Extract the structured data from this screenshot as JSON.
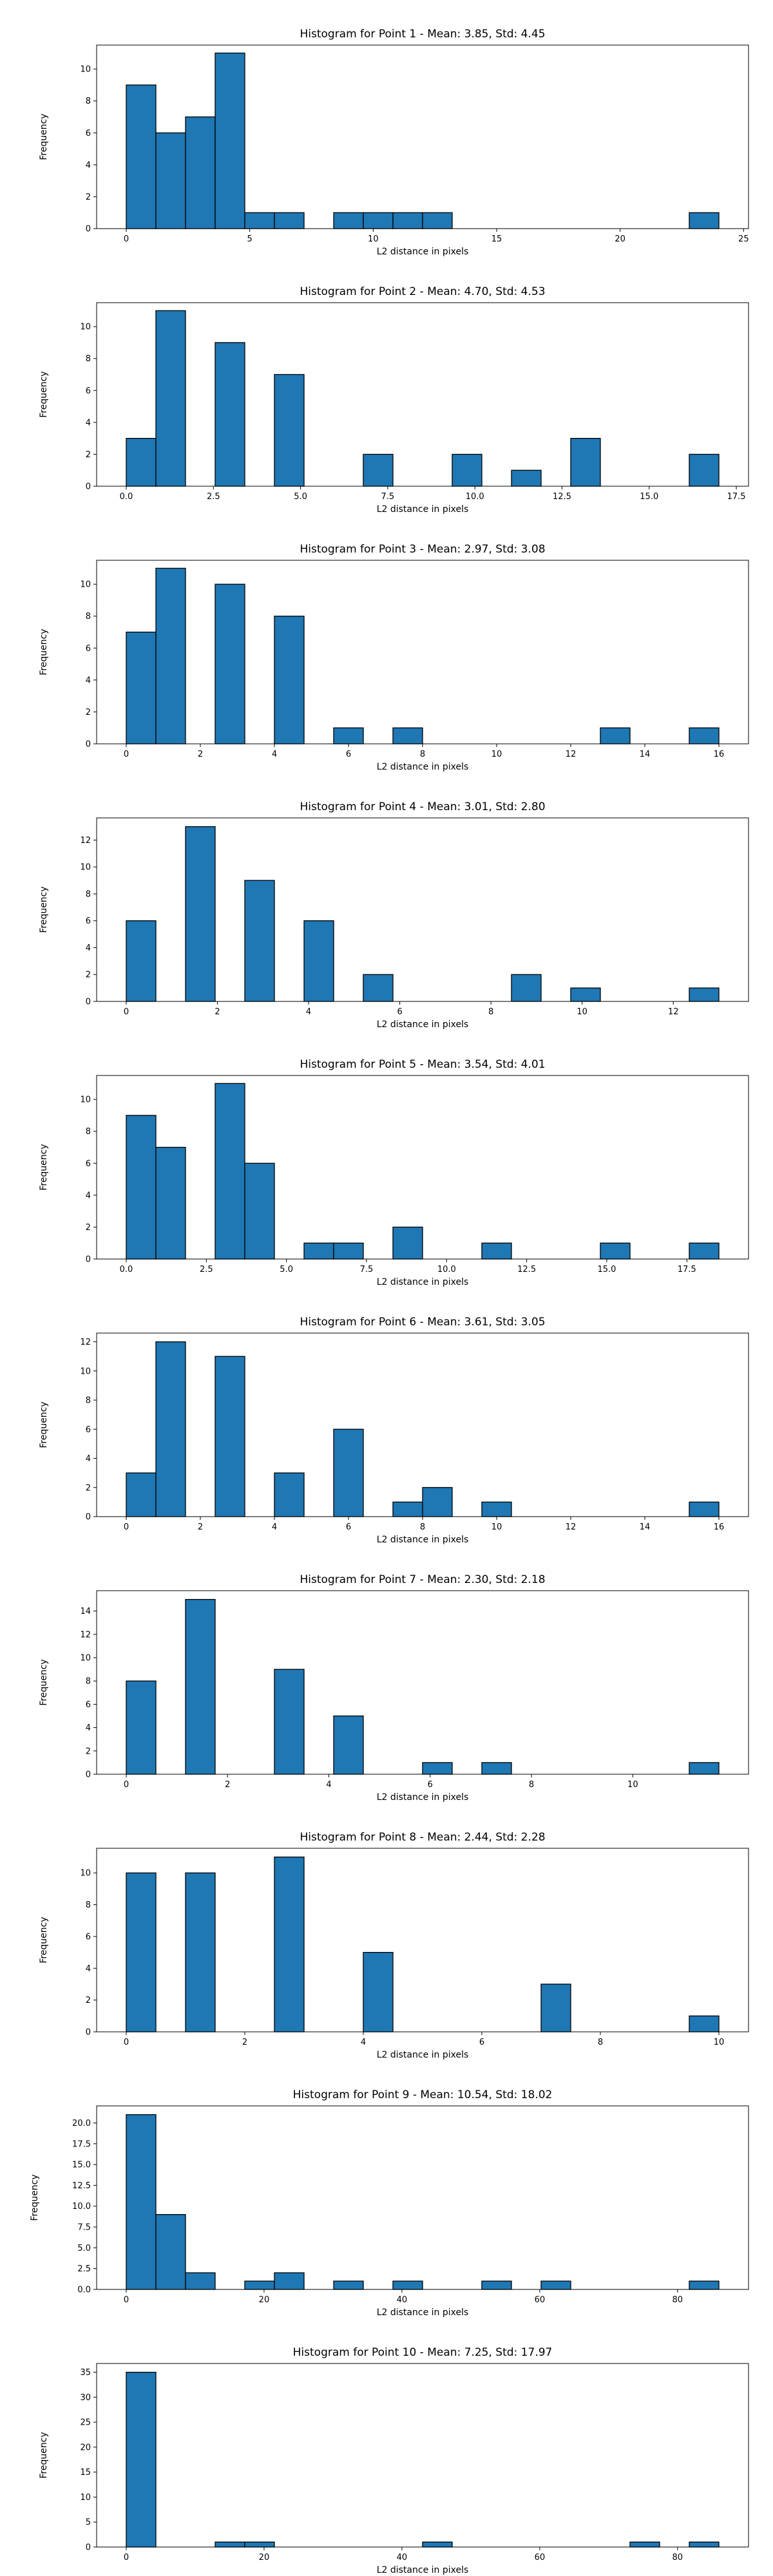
{
  "style": {
    "bar_color": "#1f77b4",
    "edge_color": "#000000",
    "background": "#ffffff"
  },
  "chart_data": [
    {
      "type": "bar",
      "title": "Histogram for Point 1 - Mean: 3.85, Std: 4.45",
      "xlabel": "L2 distance in pixels",
      "ylabel": "Frequency",
      "xlim": [
        -1.2,
        25.2
      ],
      "ylim": [
        0,
        11.5
      ],
      "xticks": [
        0,
        5,
        10,
        15,
        20,
        25
      ],
      "yticks": [
        0,
        2,
        4,
        6,
        8,
        10
      ],
      "bins": [
        {
          "x0": 0,
          "x1": 1.2,
          "count": 9
        },
        {
          "x0": 1.2,
          "x1": 2.4,
          "count": 6
        },
        {
          "x0": 2.4,
          "x1": 3.6,
          "count": 7
        },
        {
          "x0": 3.6,
          "x1": 4.8,
          "count": 11
        },
        {
          "x0": 4.8,
          "x1": 6.0,
          "count": 1
        },
        {
          "x0": 6.0,
          "x1": 7.2,
          "count": 1
        },
        {
          "x0": 8.4,
          "x1": 9.6,
          "count": 1
        },
        {
          "x0": 9.6,
          "x1": 10.8,
          "count": 1
        },
        {
          "x0": 10.8,
          "x1": 12.0,
          "count": 1
        },
        {
          "x0": 12.0,
          "x1": 13.2,
          "count": 1
        },
        {
          "x0": 22.8,
          "x1": 24.0,
          "count": 1
        }
      ]
    },
    {
      "type": "bar",
      "title": "Histogram for Point 2 - Mean: 4.70, Std: 4.53",
      "xlabel": "L2 distance in pixels",
      "ylabel": "Frequency",
      "xlim": [
        -0.85,
        17.85
      ],
      "ylim": [
        0,
        11.5
      ],
      "xticks": [
        0.0,
        2.5,
        5.0,
        7.5,
        10.0,
        12.5,
        15.0,
        17.5
      ],
      "xtick_labels": [
        "0.0",
        "2.5",
        "5.0",
        "7.5",
        "10.0",
        "12.5",
        "15.0",
        "17.5"
      ],
      "yticks": [
        0,
        2,
        4,
        6,
        8,
        10
      ],
      "bins": [
        {
          "x0": 0,
          "x1": 0.85,
          "count": 3
        },
        {
          "x0": 0.85,
          "x1": 1.7,
          "count": 11
        },
        {
          "x0": 2.55,
          "x1": 3.4,
          "count": 9
        },
        {
          "x0": 4.25,
          "x1": 5.1,
          "count": 7
        },
        {
          "x0": 6.8,
          "x1": 7.65,
          "count": 2
        },
        {
          "x0": 9.35,
          "x1": 10.2,
          "count": 2
        },
        {
          "x0": 11.05,
          "x1": 11.9,
          "count": 1
        },
        {
          "x0": 12.75,
          "x1": 13.6,
          "count": 3
        },
        {
          "x0": 16.15,
          "x1": 17.0,
          "count": 2
        }
      ]
    },
    {
      "type": "bar",
      "title": "Histogram for Point 3 - Mean: 2.97, Std: 3.08",
      "xlabel": "L2 distance in pixels",
      "ylabel": "Frequency",
      "xlim": [
        -0.8,
        16.8
      ],
      "ylim": [
        0,
        11.5
      ],
      "xticks": [
        0,
        2,
        4,
        6,
        8,
        10,
        12,
        14,
        16
      ],
      "yticks": [
        0,
        2,
        4,
        6,
        8,
        10
      ],
      "bins": [
        {
          "x0": 0,
          "x1": 0.8,
          "count": 7
        },
        {
          "x0": 0.8,
          "x1": 1.6,
          "count": 11
        },
        {
          "x0": 2.4,
          "x1": 3.2,
          "count": 10
        },
        {
          "x0": 4.0,
          "x1": 4.8,
          "count": 8
        },
        {
          "x0": 5.6,
          "x1": 6.4,
          "count": 1
        },
        {
          "x0": 7.2,
          "x1": 8.0,
          "count": 1
        },
        {
          "x0": 12.8,
          "x1": 13.6,
          "count": 1
        },
        {
          "x0": 15.2,
          "x1": 16.0,
          "count": 1
        }
      ]
    },
    {
      "type": "bar",
      "title": "Histogram for Point 4 - Mean: 3.01, Std: 2.80",
      "xlabel": "L2 distance in pixels",
      "ylabel": "Frequency",
      "xlim": [
        -0.65,
        13.65
      ],
      "ylim": [
        0,
        13.65
      ],
      "xticks": [
        0,
        2,
        4,
        6,
        8,
        10,
        12
      ],
      "yticks": [
        0,
        2,
        4,
        6,
        8,
        10,
        12
      ],
      "bins": [
        {
          "x0": 0,
          "x1": 0.65,
          "count": 6
        },
        {
          "x0": 1.3,
          "x1": 1.95,
          "count": 13
        },
        {
          "x0": 2.6,
          "x1": 3.25,
          "count": 9
        },
        {
          "x0": 3.9,
          "x1": 4.55,
          "count": 6
        },
        {
          "x0": 5.2,
          "x1": 5.85,
          "count": 2
        },
        {
          "x0": 8.45,
          "x1": 9.1,
          "count": 2
        },
        {
          "x0": 9.75,
          "x1": 10.4,
          "count": 1
        },
        {
          "x0": 12.35,
          "x1": 13.0,
          "count": 1
        }
      ]
    },
    {
      "type": "bar",
      "title": "Histogram for Point 5 - Mean: 3.54, Std: 4.01",
      "xlabel": "L2 distance in pixels",
      "ylabel": "Frequency",
      "xlim": [
        -0.925,
        19.425
      ],
      "ylim": [
        0,
        11.5
      ],
      "xticks": [
        0.0,
        2.5,
        5.0,
        7.5,
        10.0,
        12.5,
        15.0,
        17.5
      ],
      "xtick_labels": [
        "0.0",
        "2.5",
        "5.0",
        "7.5",
        "10.0",
        "12.5",
        "15.0",
        "17.5"
      ],
      "yticks": [
        0,
        2,
        4,
        6,
        8,
        10
      ],
      "bins": [
        {
          "x0": 0,
          "x1": 0.925,
          "count": 9
        },
        {
          "x0": 0.925,
          "x1": 1.85,
          "count": 7
        },
        {
          "x0": 2.775,
          "x1": 3.7,
          "count": 11
        },
        {
          "x0": 3.7,
          "x1": 4.625,
          "count": 6
        },
        {
          "x0": 5.55,
          "x1": 6.475,
          "count": 1
        },
        {
          "x0": 6.475,
          "x1": 7.4,
          "count": 1
        },
        {
          "x0": 8.325,
          "x1": 9.25,
          "count": 2
        },
        {
          "x0": 11.1,
          "x1": 12.025,
          "count": 1
        },
        {
          "x0": 14.8,
          "x1": 15.725,
          "count": 1
        },
        {
          "x0": 17.575,
          "x1": 18.5,
          "count": 1
        }
      ]
    },
    {
      "type": "bar",
      "title": "Histogram for Point 6 - Mean: 3.61, Std: 3.05",
      "xlabel": "L2 distance in pixels",
      "ylabel": "Frequency",
      "xlim": [
        -0.8,
        16.8
      ],
      "ylim": [
        0,
        12.6
      ],
      "xticks": [
        0,
        2,
        4,
        6,
        8,
        10,
        12,
        14,
        16
      ],
      "yticks": [
        0,
        2,
        4,
        6,
        8,
        10,
        12
      ],
      "bins": [
        {
          "x0": 0,
          "x1": 0.8,
          "count": 3
        },
        {
          "x0": 0.8,
          "x1": 1.6,
          "count": 12
        },
        {
          "x0": 2.4,
          "x1": 3.2,
          "count": 11
        },
        {
          "x0": 4.0,
          "x1": 4.8,
          "count": 3
        },
        {
          "x0": 5.6,
          "x1": 6.4,
          "count": 6
        },
        {
          "x0": 7.2,
          "x1": 8.0,
          "count": 1
        },
        {
          "x0": 8.0,
          "x1": 8.8,
          "count": 2
        },
        {
          "x0": 9.6,
          "x1": 10.4,
          "count": 1
        },
        {
          "x0": 15.2,
          "x1": 16.0,
          "count": 1
        }
      ]
    },
    {
      "type": "bar",
      "title": "Histogram for Point 7 - Mean: 2.30, Std: 2.18",
      "xlabel": "L2 distance in pixels",
      "ylabel": "Frequency",
      "xlim": [
        -0.585,
        12.285
      ],
      "ylim": [
        0,
        15.75
      ],
      "xticks": [
        0,
        2,
        4,
        6,
        8,
        10
      ],
      "yticks": [
        0,
        2,
        4,
        6,
        8,
        10,
        12,
        14
      ],
      "bins": [
        {
          "x0": 0,
          "x1": 0.585,
          "count": 8
        },
        {
          "x0": 1.17,
          "x1": 1.755,
          "count": 15
        },
        {
          "x0": 2.925,
          "x1": 3.51,
          "count": 9
        },
        {
          "x0": 4.095,
          "x1": 4.68,
          "count": 5
        },
        {
          "x0": 5.85,
          "x1": 6.435,
          "count": 1
        },
        {
          "x0": 7.02,
          "x1": 7.605,
          "count": 1
        },
        {
          "x0": 11.115,
          "x1": 11.7,
          "count": 1
        }
      ]
    },
    {
      "type": "bar",
      "title": "Histogram for Point 8 - Mean: 2.44, Std: 2.28",
      "xlabel": "L2 distance in pixels",
      "ylabel": "Frequency",
      "xlim": [
        -0.5,
        10.5
      ],
      "ylim": [
        0,
        11.55
      ],
      "xticks": [
        0,
        2,
        4,
        6,
        8,
        10
      ],
      "yticks": [
        0,
        2,
        4,
        6,
        8,
        10
      ],
      "bins": [
        {
          "x0": 0,
          "x1": 0.5,
          "count": 10
        },
        {
          "x0": 1.0,
          "x1": 1.5,
          "count": 10
        },
        {
          "x0": 2.5,
          "x1": 3.0,
          "count": 11
        },
        {
          "x0": 4.0,
          "x1": 4.5,
          "count": 5
        },
        {
          "x0": 7.0,
          "x1": 7.5,
          "count": 3
        },
        {
          "x0": 9.5,
          "x1": 10.0,
          "count": 1
        }
      ]
    },
    {
      "type": "bar",
      "title": "Histogram for Point 9 - Mean: 10.54, Std: 18.02",
      "xlabel": "L2 distance in pixels",
      "ylabel": "Frequency",
      "xlim": [
        -4.3,
        90.3
      ],
      "ylim": [
        0,
        22.05
      ],
      "xticks": [
        0,
        20,
        40,
        60,
        80
      ],
      "yticks": [
        0.0,
        2.5,
        5.0,
        7.5,
        10.0,
        12.5,
        15.0,
        17.5,
        20.0
      ],
      "ytick_labels": [
        "0.0",
        "2.5",
        "5.0",
        "7.5",
        "10.0",
        "12.5",
        "15.0",
        "17.5",
        "20.0"
      ],
      "bins": [
        {
          "x0": 0,
          "x1": 4.3,
          "count": 21
        },
        {
          "x0": 4.3,
          "x1": 8.6,
          "count": 9
        },
        {
          "x0": 8.6,
          "x1": 12.9,
          "count": 2
        },
        {
          "x0": 17.2,
          "x1": 21.5,
          "count": 1
        },
        {
          "x0": 21.5,
          "x1": 25.8,
          "count": 2
        },
        {
          "x0": 30.1,
          "x1": 34.4,
          "count": 1
        },
        {
          "x0": 38.7,
          "x1": 43.0,
          "count": 1
        },
        {
          "x0": 51.6,
          "x1": 55.9,
          "count": 1
        },
        {
          "x0": 60.2,
          "x1": 64.5,
          "count": 1
        },
        {
          "x0": 81.7,
          "x1": 86.0,
          "count": 1
        }
      ]
    },
    {
      "type": "bar",
      "title": "Histogram for Point 10 - Mean: 7.25, Std: 17.97",
      "xlabel": "L2 distance in pixels",
      "ylabel": "Frequency",
      "xlim": [
        -4.3,
        90.3
      ],
      "ylim": [
        0,
        36.75
      ],
      "xticks": [
        0,
        20,
        40,
        60,
        80
      ],
      "yticks": [
        0,
        5,
        10,
        15,
        20,
        25,
        30,
        35
      ],
      "bins": [
        {
          "x0": 0,
          "x1": 4.3,
          "count": 35
        },
        {
          "x0": 12.9,
          "x1": 17.2,
          "count": 1
        },
        {
          "x0": 17.2,
          "x1": 21.5,
          "count": 1
        },
        {
          "x0": 43.0,
          "x1": 47.3,
          "count": 1
        },
        {
          "x0": 73.1,
          "x1": 77.4,
          "count": 1
        },
        {
          "x0": 81.7,
          "x1": 86.0,
          "count": 1
        }
      ]
    }
  ]
}
